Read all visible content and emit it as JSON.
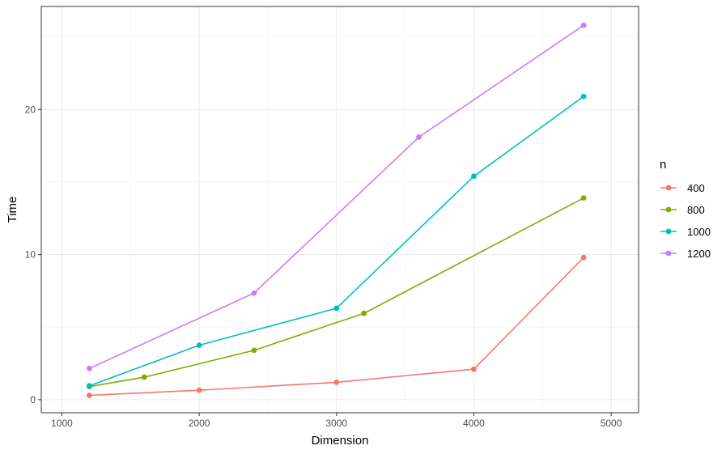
{
  "chart_data": {
    "type": "line",
    "title": "",
    "xlabel": "Dimension",
    "ylabel": "Time",
    "xlim": [
      850,
      5200
    ],
    "ylim": [
      -0.9,
      27.1
    ],
    "x_ticks": [
      1000,
      2000,
      3000,
      4000,
      5000
    ],
    "x_tick_labels": [
      "1000",
      "2000",
      "3000",
      "4000",
      "5000"
    ],
    "y_ticks": [
      0,
      10,
      20
    ],
    "y_tick_labels": [
      "0",
      "10",
      "20"
    ],
    "grid": true,
    "legend": {
      "title": "n",
      "position": "right"
    },
    "series": [
      {
        "name": "400",
        "color": "#F8766D",
        "points": [
          [
            1200,
            0.3
          ],
          [
            2000,
            0.65
          ],
          [
            3000,
            1.2
          ],
          [
            4000,
            2.1
          ],
          [
            4800,
            9.8
          ]
        ]
      },
      {
        "name": "800",
        "color": "#7CAE00",
        "points": [
          [
            1200,
            0.9
          ],
          [
            1600,
            1.55
          ],
          [
            2400,
            3.4
          ],
          [
            3200,
            5.95
          ],
          [
            4800,
            13.9
          ]
        ]
      },
      {
        "name": "1000",
        "color": "#00BFC4",
        "points": [
          [
            1200,
            0.95
          ],
          [
            2000,
            3.75
          ],
          [
            3000,
            6.3
          ],
          [
            4000,
            15.4
          ],
          [
            4800,
            20.9
          ]
        ]
      },
      {
        "name": "1200",
        "color": "#C77CFF",
        "points": [
          [
            1200,
            2.15
          ],
          [
            2400,
            7.35
          ],
          [
            3600,
            18.1
          ],
          [
            4800,
            25.8
          ]
        ]
      }
    ]
  }
}
